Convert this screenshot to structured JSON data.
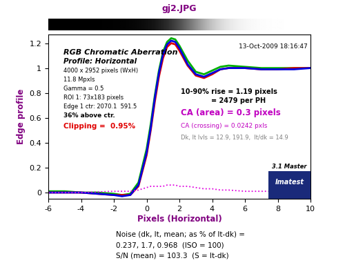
{
  "chart_data": {
    "type": "line",
    "title": "gj2.JPG",
    "x_label": "Pixels (Horizontal)",
    "y_label": "Edge profile",
    "xlim": [
      -6,
      10
    ],
    "ylim": [
      -0.05,
      1.27
    ],
    "xticks": [
      -6,
      -4,
      -2,
      0,
      2,
      4,
      6,
      8,
      10
    ],
    "yticks": [
      0,
      0.2,
      0.4,
      0.6,
      0.8,
      1,
      1.2
    ],
    "grid": false,
    "x": [
      -6,
      -5,
      -4,
      -3,
      -2,
      -1.5,
      -1,
      -0.5,
      0,
      0.25,
      0.5,
      0.75,
      1,
      1.25,
      1.5,
      1.75,
      2,
      2.5,
      3,
      3.5,
      4,
      4.5,
      5,
      6,
      7,
      8,
      9,
      10
    ],
    "series": [
      {
        "color": "#00b000",
        "line_style": "solid",
        "values": [
          0.01,
          0.01,
          0.0,
          0.0,
          -0.01,
          -0.02,
          -0.01,
          0.08,
          0.35,
          0.55,
          0.78,
          0.98,
          1.13,
          1.21,
          1.24,
          1.23,
          1.18,
          1.06,
          0.97,
          0.95,
          0.98,
          1.01,
          1.02,
          1.01,
          1.0,
          1.0,
          1.0,
          1.0
        ]
      },
      {
        "color": "#e00000",
        "line_style": "solid",
        "values": [
          0.0,
          0.0,
          0.0,
          -0.01,
          -0.02,
          -0.02,
          -0.02,
          0.05,
          0.3,
          0.5,
          0.73,
          0.93,
          1.08,
          1.17,
          1.2,
          1.19,
          1.14,
          1.02,
          0.94,
          0.92,
          0.95,
          0.99,
          1.0,
          1.0,
          0.99,
          0.99,
          1.0,
          1.0
        ]
      },
      {
        "color": "#0000e0",
        "line_style": "solid",
        "values": [
          0.0,
          0.0,
          0.0,
          -0.01,
          -0.02,
          -0.03,
          -0.02,
          0.06,
          0.32,
          0.52,
          0.76,
          0.96,
          1.11,
          1.19,
          1.22,
          1.21,
          1.16,
          1.03,
          0.95,
          0.93,
          0.96,
          0.99,
          1.0,
          1.0,
          0.99,
          0.99,
          0.99,
          1.0
        ]
      },
      {
        "color": "#e000e0",
        "line_style": "dotted",
        "values": [
          0.0,
          0.0,
          0.0,
          0.005,
          0.01,
          0.01,
          0.01,
          0.02,
          0.04,
          0.05,
          0.05,
          0.05,
          0.05,
          0.06,
          0.06,
          0.06,
          0.05,
          0.05,
          0.04,
          0.03,
          0.03,
          0.02,
          0.02,
          0.01,
          0.01,
          0.01,
          0.01,
          0.01
        ]
      }
    ],
    "annotations": [
      {
        "text": "RGB Chromatic Aberration",
        "color": "#000000"
      },
      {
        "text": "Profile: Horizontal",
        "color": "#000000"
      },
      {
        "text": "13-Oct-2009 18:16:47",
        "color": "#000000"
      },
      {
        "text": "4000 x 2952 pixels (WxH)",
        "color": "#000000"
      },
      {
        "text": "11.8 Mpxls",
        "color": "#000000"
      },
      {
        "text": "Gamma = 0.5",
        "color": "#000000"
      },
      {
        "text": "ROI 1: 73x183 pixels",
        "color": "#000000"
      },
      {
        "text": "Edge 1 ctr: 2070.1  591.5",
        "color": "#000000"
      },
      {
        "text": "36% above ctr.",
        "color": "#000000"
      },
      {
        "text": "Clipping =  0.95%",
        "color": "#e00000"
      },
      {
        "text": "10-90% rise = 1.19 pixels",
        "color": "#000000"
      },
      {
        "text": "= 2479 per PH",
        "color": "#000000"
      },
      {
        "text": "CA (area) = 0.3 pixels",
        "color": "#c000c0"
      },
      {
        "text": "CA (crossing) = 0.0242 pxls",
        "color": "#c000c0"
      },
      {
        "text": "Dk, lt lvls = 12.9, 191.9,  lt/dk = 14.9",
        "color": "#808080"
      }
    ],
    "logo": [
      "3.1 Master",
      "Imatest"
    ],
    "footer": [
      "Noise (dk, lt, mean; as % of lt-dk) =",
      "0.237, 1.7, 0.968  (ISO = 100)",
      "S/N (mean) = 103.3  (S = lt-dk)"
    ]
  }
}
